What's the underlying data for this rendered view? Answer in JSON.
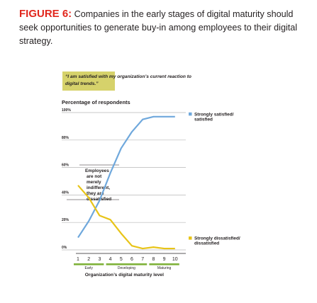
{
  "caption": {
    "figure_label": "FIGURE 6:",
    "text": " Companies in the early stages of digital maturity should seek opportunities to generate buy-in among employees to their digital strategy."
  },
  "chart_data": {
    "type": "line",
    "question": "“I am satisfied with my organization’s current reaction to digital trends.”",
    "ylabel": "Percentage of respondents",
    "xlabel": "Organization’s digital maturity level",
    "ylim": [
      0,
      100
    ],
    "y_ticks": [
      "0%",
      "20%",
      "40%",
      "60%",
      "80%",
      "100%"
    ],
    "x": [
      1,
      2,
      3,
      4,
      5,
      6,
      7,
      8,
      9,
      10
    ],
    "stages": [
      "Early",
      "Developing",
      "Maturing"
    ],
    "series": [
      {
        "name": "Strongly satisfied/ satisfied",
        "color": "#6fa8dc",
        "values": [
          9,
          21,
          36,
          56,
          74,
          86,
          95,
          97,
          97,
          97
        ]
      },
      {
        "name": "Strongly dissatisfied/ dissatisfied",
        "color": "#e8c418",
        "values": [
          47,
          38,
          25,
          22,
          12,
          3,
          1,
          2,
          1,
          1
        ]
      }
    ],
    "annotation": [
      "Employees",
      "are not",
      "merely",
      "indifferent,",
      "they are",
      "dissatisfied"
    ],
    "grid": true,
    "legend": "right"
  }
}
